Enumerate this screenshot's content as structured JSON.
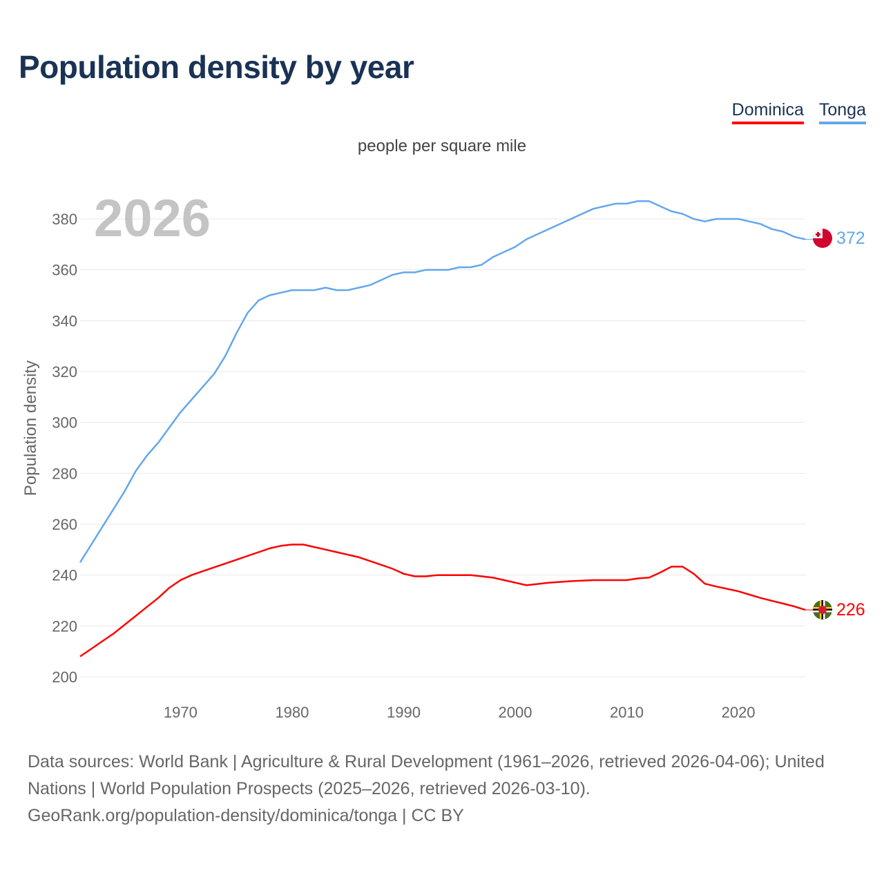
{
  "title": "Population density by year",
  "subtitle": "people per square mile",
  "watermark_year": "2026",
  "legend": [
    {
      "label": "Dominica",
      "color": "#ff0000"
    },
    {
      "label": "Tonga",
      "color": "#63a7ec"
    }
  ],
  "footer": {
    "line1": "Data sources: World Bank | Agriculture & Rural Development (1961–2026, retrieved 2026-04-06); United Nations | World Population Prospects (2025–2026, retrieved 2026-03-10).",
    "line2": "GeoRank.org/population-density/dominica/tonga | CC BY"
  },
  "chart_data": {
    "type": "line",
    "title": "Population density by year",
    "subtitle": "people per square mile",
    "xlabel": "",
    "ylabel": "Population density",
    "xlim": [
      1961,
      2026
    ],
    "ylim": [
      200,
      390
    ],
    "xticks": [
      1970,
      1980,
      1990,
      2000,
      2010,
      2020
    ],
    "yticks": [
      200,
      220,
      240,
      260,
      280,
      300,
      320,
      340,
      360,
      380
    ],
    "grid": true,
    "legend_position": "top-right",
    "x_start": 1961,
    "series": [
      {
        "name": "Dominica",
        "color": "#ff0000",
        "end_label": "226",
        "values": [
          208,
          211,
          214,
          217,
          220.5,
          224,
          227.5,
          231,
          235,
          238,
          240,
          241.5,
          243,
          244.5,
          246,
          247.5,
          249,
          250.5,
          251.5,
          252,
          252,
          251,
          250,
          249,
          248,
          247,
          245.5,
          244,
          242.5,
          240.5,
          239.5,
          239.5,
          240,
          240,
          240,
          240,
          239.5,
          239,
          238,
          237,
          236,
          236.5,
          237,
          237.3,
          237.6,
          237.8,
          238,
          238,
          238,
          238,
          238.7,
          239,
          241,
          243.3,
          243.3,
          240.5,
          236.6,
          235.5,
          234.6,
          233.6,
          232.3,
          231,
          229.9,
          228.8,
          227.7,
          226.3
        ]
      },
      {
        "name": "Tonga",
        "color": "#63a7ec",
        "end_label": "372",
        "values": [
          245,
          252,
          259,
          266,
          273,
          281,
          287,
          292,
          298,
          304,
          309,
          314,
          319,
          326,
          335,
          343,
          348,
          350,
          351,
          352,
          352,
          352,
          353,
          352,
          352,
          353,
          354,
          356,
          358,
          359,
          359,
          360,
          360,
          360,
          361,
          361,
          362,
          365,
          367,
          369,
          372,
          374,
          376,
          378,
          380,
          382,
          384,
          385,
          386,
          386,
          387,
          387,
          385,
          383,
          382,
          380,
          379,
          380,
          380,
          380,
          379,
          378,
          376,
          375,
          373,
          372
        ]
      }
    ]
  }
}
